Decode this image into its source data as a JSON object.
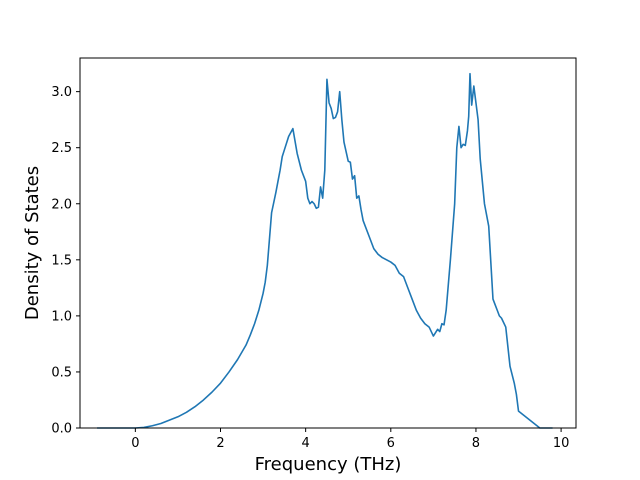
{
  "chart_data": {
    "type": "line",
    "title": "",
    "xlabel": "Frequency (THz)",
    "ylabel": "Density of States",
    "xlim": [
      -1.3,
      10.35
    ],
    "ylim": [
      0,
      3.3
    ],
    "xticks": [
      0,
      2,
      4,
      6,
      8,
      10
    ],
    "xtick_labels": [
      "0",
      "2",
      "4",
      "6",
      "8",
      "10"
    ],
    "yticks": [
      0,
      0.5,
      1.0,
      1.5,
      2.0,
      2.5,
      3.0
    ],
    "ytick_labels": [
      "0.0",
      "0.5",
      "1.0",
      "1.5",
      "2.0",
      "2.5",
      "3.0"
    ],
    "grid": false,
    "line_color": "#1f77b4",
    "series": [
      {
        "x": [
          -0.9,
          -0.5,
          0,
          0.2,
          0.4,
          0.6,
          0.8,
          1.0,
          1.2,
          1.4,
          1.6,
          1.8,
          2.0,
          2.2,
          2.4,
          2.6,
          2.7,
          2.8,
          2.9,
          3.0,
          3.05,
          3.1,
          3.2,
          3.3,
          3.35,
          3.4,
          3.45,
          3.5,
          3.6,
          3.7,
          3.8,
          3.9,
          4.0,
          4.05,
          4.1,
          4.15,
          4.2,
          4.25,
          4.3,
          4.35,
          4.4,
          4.45,
          4.5,
          4.55,
          4.6,
          4.65,
          4.7,
          4.75,
          4.8,
          4.85,
          4.9,
          5.0,
          5.05,
          5.1,
          5.15,
          5.2,
          5.25,
          5.3,
          5.35,
          5.4,
          5.5,
          5.6,
          5.7,
          5.8,
          5.9,
          6.0,
          6.1,
          6.2,
          6.3,
          6.4,
          6.5,
          6.6,
          6.7,
          6.8,
          6.9,
          7.0,
          7.05,
          7.1,
          7.15,
          7.2,
          7.25,
          7.3,
          7.4,
          7.5,
          7.55,
          7.6,
          7.65,
          7.7,
          7.75,
          7.8,
          7.83,
          7.86,
          7.9,
          7.95,
          8.0,
          8.05,
          8.1,
          8.2,
          8.3,
          8.4,
          8.45,
          8.5,
          8.55,
          8.6,
          8.7,
          8.8,
          8.9,
          8.95,
          9.0,
          9.5,
          9.8
        ],
        "y": [
          0,
          0,
          0,
          0.005,
          0.02,
          0.04,
          0.07,
          0.1,
          0.14,
          0.19,
          0.25,
          0.32,
          0.4,
          0.5,
          0.61,
          0.74,
          0.83,
          0.93,
          1.05,
          1.2,
          1.3,
          1.45,
          1.92,
          2.1,
          2.2,
          2.3,
          2.42,
          2.48,
          2.6,
          2.67,
          2.45,
          2.3,
          2.2,
          2.05,
          2.0,
          2.02,
          2.0,
          1.96,
          1.97,
          2.15,
          2.05,
          2.3,
          3.11,
          2.9,
          2.85,
          2.76,
          2.77,
          2.82,
          3.0,
          2.75,
          2.55,
          2.38,
          2.37,
          2.22,
          2.25,
          2.05,
          2.07,
          1.95,
          1.85,
          1.8,
          1.7,
          1.6,
          1.55,
          1.52,
          1.5,
          1.48,
          1.45,
          1.38,
          1.35,
          1.25,
          1.15,
          1.05,
          0.98,
          0.93,
          0.9,
          0.82,
          0.85,
          0.88,
          0.86,
          0.93,
          0.92,
          1.05,
          1.5,
          2.0,
          2.5,
          2.69,
          2.5,
          2.53,
          2.52,
          2.65,
          2.78,
          3.16,
          2.88,
          3.05,
          2.9,
          2.75,
          2.4,
          2.0,
          1.8,
          1.15,
          1.1,
          1.05,
          1.0,
          0.98,
          0.9,
          0.55,
          0.4,
          0.3,
          0.15,
          0,
          0
        ]
      }
    ]
  }
}
